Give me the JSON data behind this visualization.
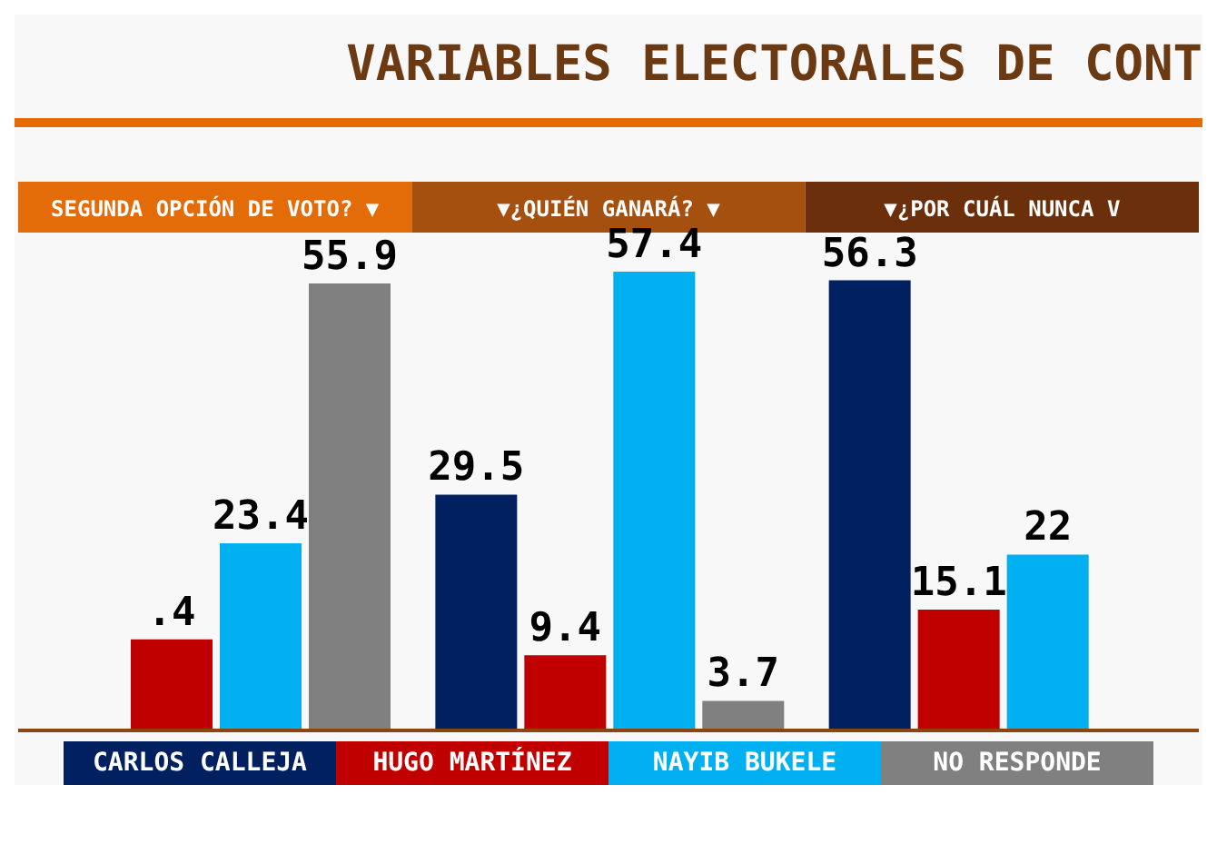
{
  "chart_data": {
    "type": "bar",
    "title": "VARIABLES ELECTORALES DE CONT",
    "categories": [
      "SEGUNDA OPCIÓN DE VOTO? ▼",
      "▼¿QUIÉN GANARÁ? ▼",
      "▼¿POR CUÁL NUNCA V"
    ],
    "series": [
      {
        "name": "CARLOS CALLEJA",
        "color": "#002060",
        "values": [
          null,
          29.5,
          56.3
        ],
        "value_labels": [
          null,
          "29.5",
          "56.3"
        ]
      },
      {
        "name": "HUGO MARTÍNEZ",
        "color": "#c00000",
        "values": [
          11.4,
          9.4,
          15.1
        ],
        "value_labels": [
          null,
          "9.4",
          "15.1"
        ]
      },
      {
        "name": "NAYIB BUKELE",
        "color": "#00b0f0",
        "values": [
          23.4,
          57.4,
          22
        ],
        "value_labels": [
          "23.4",
          "57.4",
          "22"
        ]
      },
      {
        "name": "NO RESPONDE",
        "color": "#808080",
        "values": [
          55.9,
          3.7,
          null
        ],
        "value_labels": [
          "55.9",
          "3.7",
          null
        ]
      }
    ],
    "annotations": [
      {
        "text": ".4",
        "x": "SEGUNDA OPCIÓN DE VOTO? ▼",
        "y": 11.4
      }
    ],
    "legend": "bottom",
    "grid": false
  }
}
